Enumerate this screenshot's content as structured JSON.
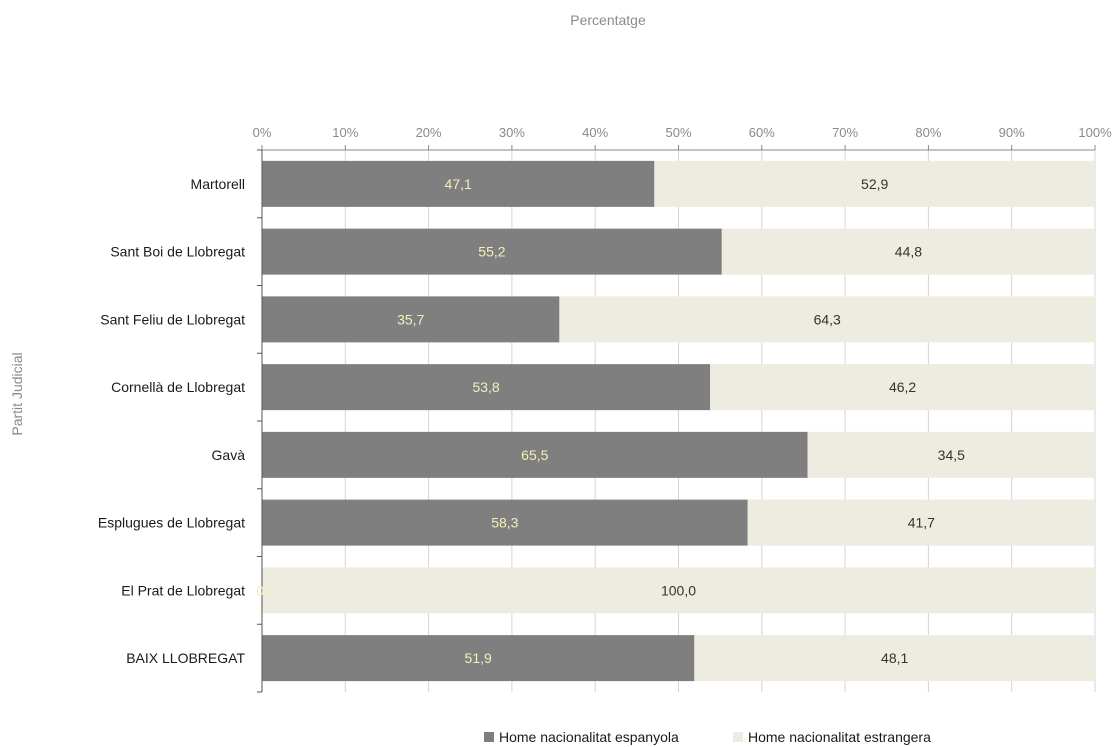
{
  "chart_data": {
    "type": "bar",
    "orientation": "horizontal",
    "stacked": "percent",
    "title": "Percentatge",
    "ylabel": "Partit Judicial",
    "xlim": [
      0,
      100
    ],
    "x_ticks": [
      "0%",
      "10%",
      "20%",
      "30%",
      "40%",
      "50%",
      "60%",
      "70%",
      "80%",
      "90%",
      "100%"
    ],
    "x_axis_position": "top",
    "grid": true,
    "legend_position": "bottom",
    "categories": [
      "Martorell",
      "Sant Boi de Llobregat",
      "Sant Feliu de Llobregat",
      "Cornellà de Llobregat",
      "Gavà",
      "Esplugues de Llobregat",
      "El Prat de Llobregat",
      "BAIX LLOBREGAT"
    ],
    "series": [
      {
        "name": "Home nacionalitat espanyola",
        "color": "#7f7f7f",
        "label_color": "#f3efb8",
        "values": [
          47.1,
          55.2,
          35.7,
          53.8,
          65.5,
          58.3,
          0.0,
          51.9
        ],
        "labels": [
          "47,1",
          "55,2",
          "35,7",
          "53,8",
          "65,5",
          "58,3",
          "0,0",
          "51,9"
        ]
      },
      {
        "name": "Home nacionalitat estrangera",
        "color": "#eeebe0",
        "label_color": "#333333",
        "values": [
          52.9,
          44.8,
          64.3,
          46.2,
          34.5,
          41.7,
          100.0,
          48.1
        ],
        "labels": [
          "52,9",
          "44,8",
          "64,3",
          "46,2",
          "34,5",
          "41,7",
          "100,0",
          "48,1"
        ]
      }
    ]
  }
}
